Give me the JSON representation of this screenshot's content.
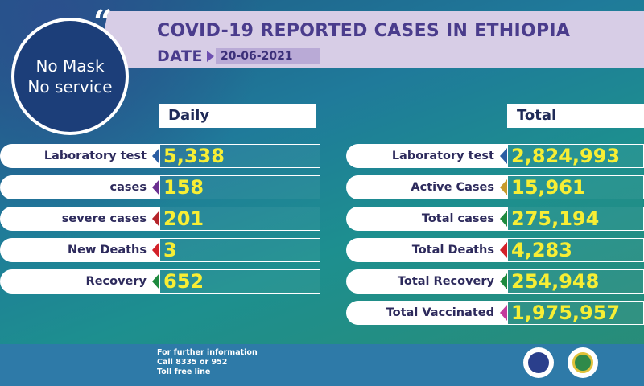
{
  "header": {
    "title": "COVID-19 REPORTED CASES IN ETHIOPIA",
    "date_label": "DATE",
    "date_value": "20-06-2021"
  },
  "badge": {
    "line1": "No Mask",
    "line2": "No service"
  },
  "daily": {
    "heading": "Daily",
    "rows": [
      {
        "label": "Laboratory test",
        "value": "5,338",
        "color": "#2b5ea3"
      },
      {
        "label": "cases",
        "value": "158",
        "color": "#6a2f8f"
      },
      {
        "label": "severe cases",
        "value": "201",
        "color": "#b5242a"
      },
      {
        "label": "New Deaths",
        "value": "3",
        "color": "#d3222a"
      },
      {
        "label": "Recovery",
        "value": "652",
        "color": "#1e8a3e"
      }
    ]
  },
  "total": {
    "heading": "Total",
    "rows": [
      {
        "label": "Laboratory test",
        "value": "2,824,993",
        "color": "#2b5ea3"
      },
      {
        "label": "Active Cases",
        "value": "15,961",
        "color": "#c79a2b"
      },
      {
        "label": "Total cases",
        "value": "275,194",
        "color": "#1e8a3e"
      },
      {
        "label": "Total Deaths",
        "value": "4,283",
        "color": "#d3222a"
      },
      {
        "label": "Total Recovery",
        "value": "254,948",
        "color": "#1e8a3e"
      },
      {
        "label": "Total Vaccinated",
        "value": "1,975,957",
        "color": "#c53a9b"
      }
    ]
  },
  "footer": {
    "line1": "For further information",
    "line2": "Call 8335 or 952",
    "line3": "Toll free line"
  }
}
